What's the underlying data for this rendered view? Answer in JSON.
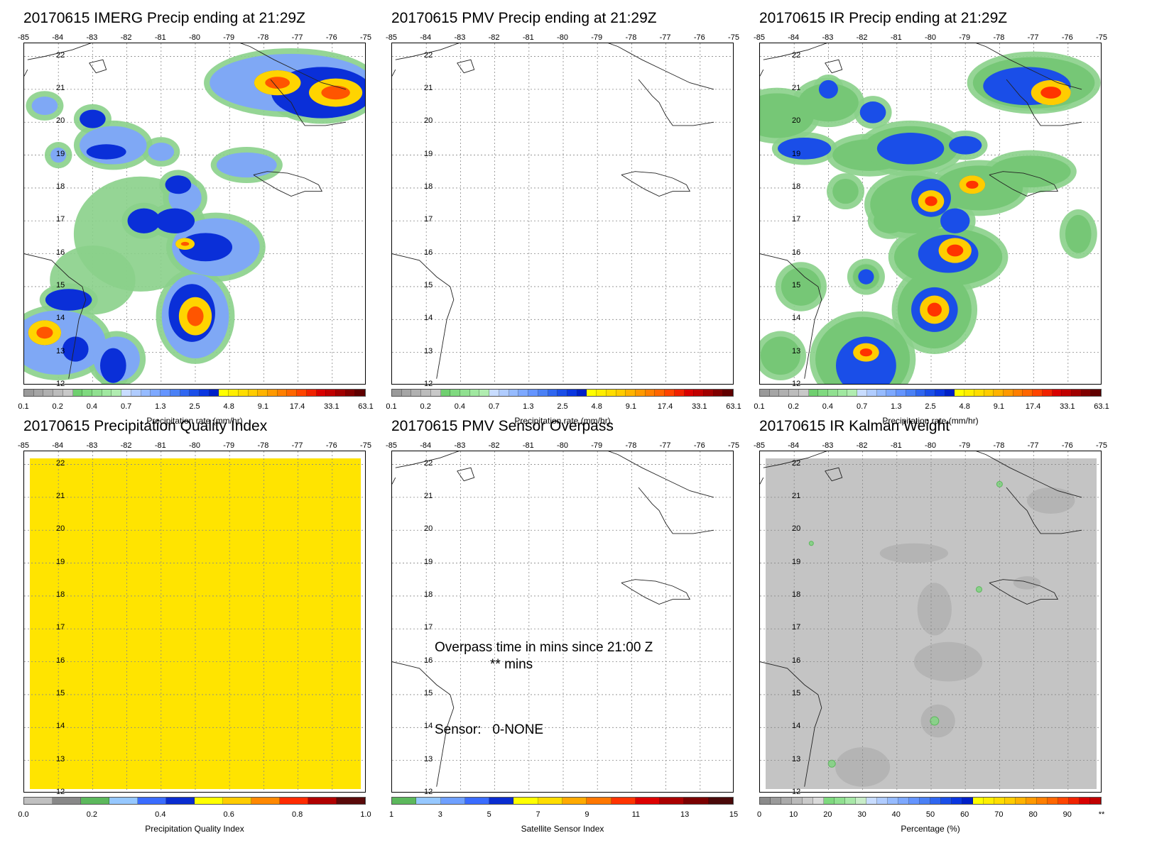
{
  "lon_labels": [
    "-85",
    "-84",
    "-83",
    "-82",
    "-81",
    "-80",
    "-79",
    "-78",
    "-77",
    "-76",
    "-75"
  ],
  "lat_labels": [
    "22",
    "21",
    "20",
    "19",
    "18",
    "17",
    "16",
    "15",
    "14",
    "13",
    "12"
  ],
  "panels": [
    {
      "title": "20170615 IMERG Precip ending at 21:29Z",
      "type": "precip",
      "cbar_label": "Precipitation rate (mm/hr)",
      "ticks": [
        "0.1",
        "0.2",
        "0.4",
        "0.7",
        "1.3",
        "2.5",
        "4.8",
        "9.1",
        "17.4",
        "33.1",
        "63.1"
      ]
    },
    {
      "title": "20170615 PMV Precip ending at 21:29Z",
      "type": "empty",
      "cbar_label": "Precipitation rate (mm/hr)",
      "ticks": [
        "0.1",
        "0.2",
        "0.4",
        "0.7",
        "1.3",
        "2.5",
        "4.8",
        "9.1",
        "17.4",
        "33.1",
        "63.1"
      ]
    },
    {
      "title": "20170615 IR Precip ending at 21:29Z",
      "type": "precip",
      "cbar_label": "Precipitation rate (mm/hr)",
      "ticks": [
        "0.1",
        "0.2",
        "0.4",
        "0.7",
        "1.3",
        "2.5",
        "4.8",
        "9.1",
        "17.4",
        "33.1",
        "63.1"
      ]
    },
    {
      "title": "20170615 Precipitation Quality Index",
      "type": "quality",
      "cbar_label": "Precipitation Quality Index",
      "ticks": [
        "0.0",
        "0.2",
        "0.4",
        "0.6",
        "0.8",
        "1.0"
      ]
    },
    {
      "title": "20170615 PMV Sensor Overpass",
      "type": "empty",
      "cbar_label": "Satellite Sensor Index",
      "ticks": [
        "1",
        "3",
        "5",
        "7",
        "9",
        "11",
        "13",
        "15"
      ]
    },
    {
      "title": "20170615 IR Kalman Weight",
      "type": "kalman",
      "cbar_label": "Percentage (%)",
      "ticks": [
        "0",
        "10",
        "20",
        "30",
        "40",
        "50",
        "60",
        "70",
        "80",
        "90",
        "**"
      ]
    }
  ],
  "overpass": {
    "line1": "Overpass time in mins since 21:00 Z",
    "line2": "** mins",
    "sensor": "Sensor:   0-NONE"
  },
  "colors": {
    "precip_scale": [
      "#9a9a9a",
      "#a5a5a5",
      "#b0b0b0",
      "#bcbcbc",
      "#c8c8c8",
      "#6fcf6f",
      "#7fd97f",
      "#90e090",
      "#a0e8a0",
      "#b0ecb0",
      "#c8dcff",
      "#b0ccff",
      "#96bbff",
      "#7da8ff",
      "#6494ff",
      "#4a80f5",
      "#2f66f0",
      "#1a4ee8",
      "#0a36e0",
      "#0020c8",
      "#ffff00",
      "#ffee00",
      "#ffdd00",
      "#ffcc00",
      "#ffb300",
      "#ff9900",
      "#ff7f00",
      "#ff6600",
      "#ff4400",
      "#f02200",
      "#d80000",
      "#c00000",
      "#a00000",
      "#800000",
      "#600000"
    ],
    "quality_scale": [
      "#c0c0c0",
      "#888888",
      "#5cb85c",
      "#96c8ff",
      "#3a6cff",
      "#0a2cd0",
      "#ffff00",
      "#ffcc00",
      "#ff8800",
      "#ff2a00",
      "#b00000",
      "#5a0a0a"
    ],
    "sensor_scale": [
      "#5cb85c",
      "#96c8ff",
      "#6fa0ff",
      "#3a6cff",
      "#0a2cd0",
      "#ffff00",
      "#ffdd00",
      "#ffaa00",
      "#ff7700",
      "#ff3300",
      "#dd0000",
      "#aa0000",
      "#7a0000",
      "#4a0a0a"
    ],
    "kalman_scale": [
      "#8a8a8a",
      "#9a9a9a",
      "#aaaaaa",
      "#bababa",
      "#cacaca",
      "#dadada",
      "#7fd97f",
      "#90e090",
      "#a8e8a8",
      "#c8ecc8",
      "#c8dcff",
      "#b0ccff",
      "#96bbff",
      "#7da8ff",
      "#6494ff",
      "#4a80f5",
      "#2f66f0",
      "#1a4ee8",
      "#0a36e0",
      "#0020c8",
      "#ffff00",
      "#ffee00",
      "#ffdd00",
      "#ffcc00",
      "#ffb300",
      "#ff9900",
      "#ff7f00",
      "#ff6600",
      "#ff4400",
      "#f02200",
      "#d80000",
      "#c00000"
    ],
    "quality_fill": "#ffe400",
    "kalman_fill": "#c4c4c4"
  }
}
